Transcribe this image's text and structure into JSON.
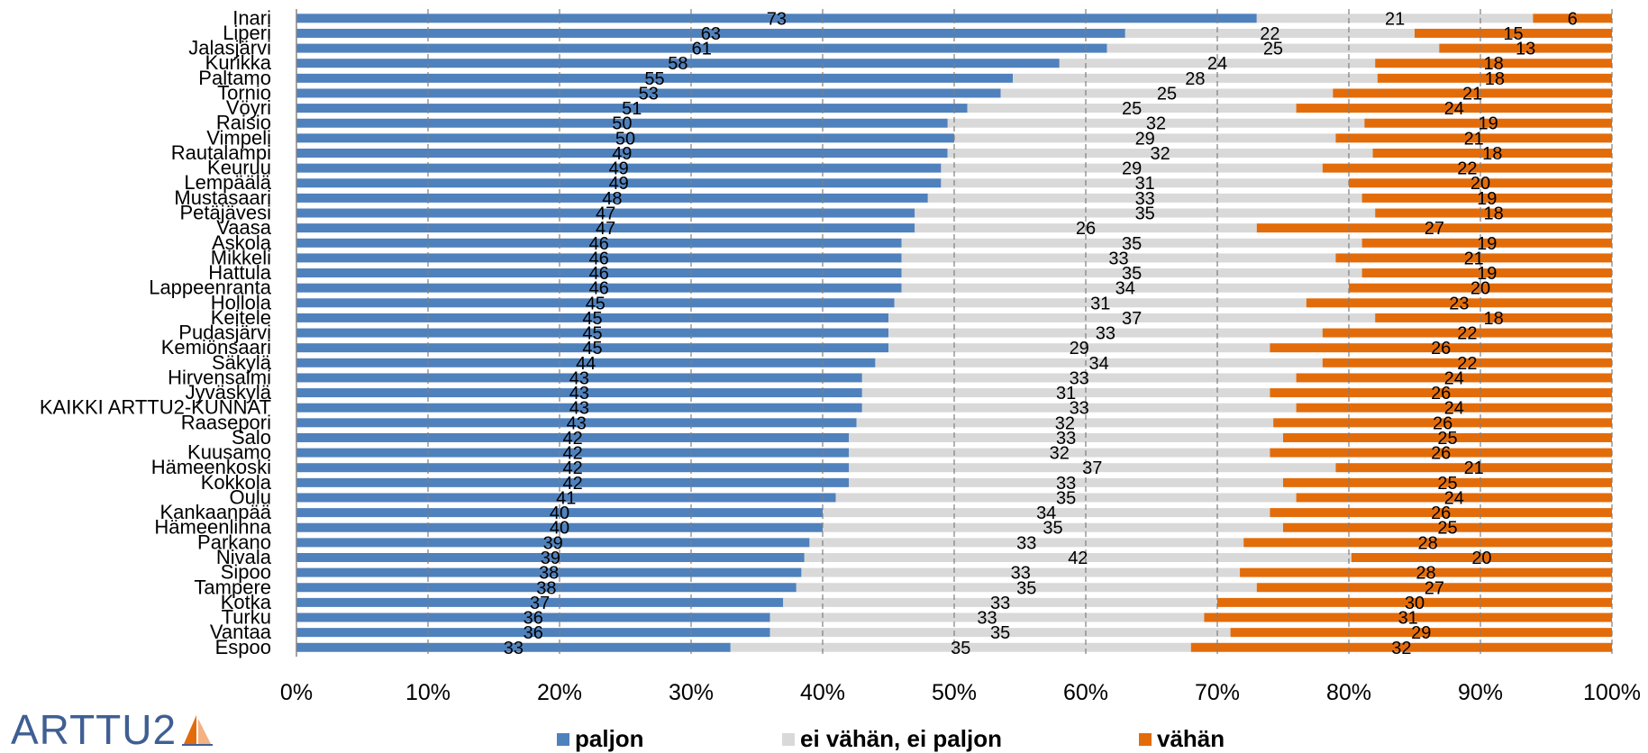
{
  "chart_data": {
    "type": "bar",
    "orientation": "horizontal",
    "stacked": "percent",
    "categories": [
      "Inari",
      "Liperi",
      "Jalasjärvi",
      "Kurikka",
      "Paltamo",
      "Tornio",
      "Vöyri",
      "Raisio",
      "Vimpeli",
      "Rautalampi",
      "Keuruu",
      "Lempäälä",
      "Mustasaari",
      "Petäjävesi",
      "Vaasa",
      "Askola",
      "Mikkeli",
      "Hattula",
      "Lappeenranta",
      "Hollola",
      "Keitele",
      "Pudasjärvi",
      "Kemiönsaari",
      "Säkylä",
      "Hirvensalmi",
      "Jyväskylä",
      "KAIKKI ARTTU2-KUNNAT",
      "Raasepori",
      "Salo",
      "Kuusamo",
      "Hämeenkoski",
      "Kokkola",
      "Oulu",
      "Kankaanpää",
      "Hämeenlinna",
      "Parkano",
      "Nivala",
      "Sipoo",
      "Tampere",
      "Kotka",
      "Turku",
      "Vantaa",
      "Espoo"
    ],
    "series": [
      {
        "name": "paljon",
        "color": "#4f81bd",
        "values": [
          73,
          63,
          61,
          58,
          55,
          53,
          51,
          50,
          50,
          49,
          49,
          49,
          48,
          47,
          47,
          46,
          46,
          46,
          46,
          45,
          45,
          45,
          45,
          44,
          43,
          43,
          43,
          43,
          42,
          42,
          42,
          42,
          41,
          40,
          40,
          39,
          39,
          38,
          38,
          37,
          36,
          36,
          33
        ]
      },
      {
        "name": "ei vähän, ei paljon",
        "color": "#d9d9d9",
        "values": [
          21,
          22,
          25,
          24,
          28,
          25,
          25,
          32,
          29,
          32,
          29,
          31,
          33,
          35,
          26,
          35,
          33,
          35,
          34,
          31,
          37,
          33,
          29,
          34,
          33,
          31,
          33,
          32,
          33,
          32,
          37,
          33,
          35,
          34,
          35,
          33,
          42,
          33,
          35,
          33,
          33,
          35,
          35
        ]
      },
      {
        "name": "vähän",
        "color": "#e36c0a",
        "values": [
          6,
          15,
          13,
          18,
          18,
          21,
          24,
          19,
          21,
          18,
          22,
          20,
          19,
          18,
          27,
          19,
          21,
          19,
          20,
          23,
          18,
          22,
          26,
          22,
          24,
          26,
          24,
          26,
          25,
          26,
          21,
          25,
          24,
          26,
          25,
          28,
          20,
          28,
          27,
          30,
          31,
          29,
          32
        ]
      }
    ],
    "xlim": [
      0,
      100
    ],
    "xticks": [
      "0%",
      "10%",
      "20%",
      "30%",
      "40%",
      "50%",
      "60%",
      "70%",
      "80%",
      "90%",
      "100%"
    ],
    "grid": true,
    "legend": "bottom",
    "title": "",
    "xlabel": "",
    "ylabel": ""
  },
  "logo": {
    "text": "ARTTU2"
  }
}
